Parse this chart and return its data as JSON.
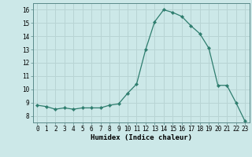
{
  "x": [
    0,
    1,
    2,
    3,
    4,
    5,
    6,
    7,
    8,
    9,
    10,
    11,
    12,
    13,
    14,
    15,
    16,
    17,
    18,
    19,
    20,
    21,
    22,
    23
  ],
  "y": [
    8.8,
    8.7,
    8.5,
    8.6,
    8.5,
    8.6,
    8.6,
    8.6,
    8.8,
    8.9,
    9.7,
    10.4,
    13.0,
    15.1,
    16.0,
    15.8,
    15.5,
    14.8,
    14.2,
    13.1,
    10.3,
    10.3,
    9.0,
    7.6
  ],
  "line_color": "#2e7d6e",
  "marker": "D",
  "marker_size": 2.2,
  "bg_color": "#cce8e8",
  "grid_color": "#b8d4d4",
  "xlabel": "Humidex (Indice chaleur)",
  "xlim": [
    -0.5,
    23.5
  ],
  "ylim": [
    7.5,
    16.5
  ],
  "yticks": [
    8,
    9,
    10,
    11,
    12,
    13,
    14,
    15,
    16
  ],
  "xticks": [
    0,
    1,
    2,
    3,
    4,
    5,
    6,
    7,
    8,
    9,
    10,
    11,
    12,
    13,
    14,
    15,
    16,
    17,
    18,
    19,
    20,
    21,
    22,
    23
  ],
  "tick_fontsize": 5.5,
  "xlabel_fontsize": 6.5,
  "line_width": 0.9
}
